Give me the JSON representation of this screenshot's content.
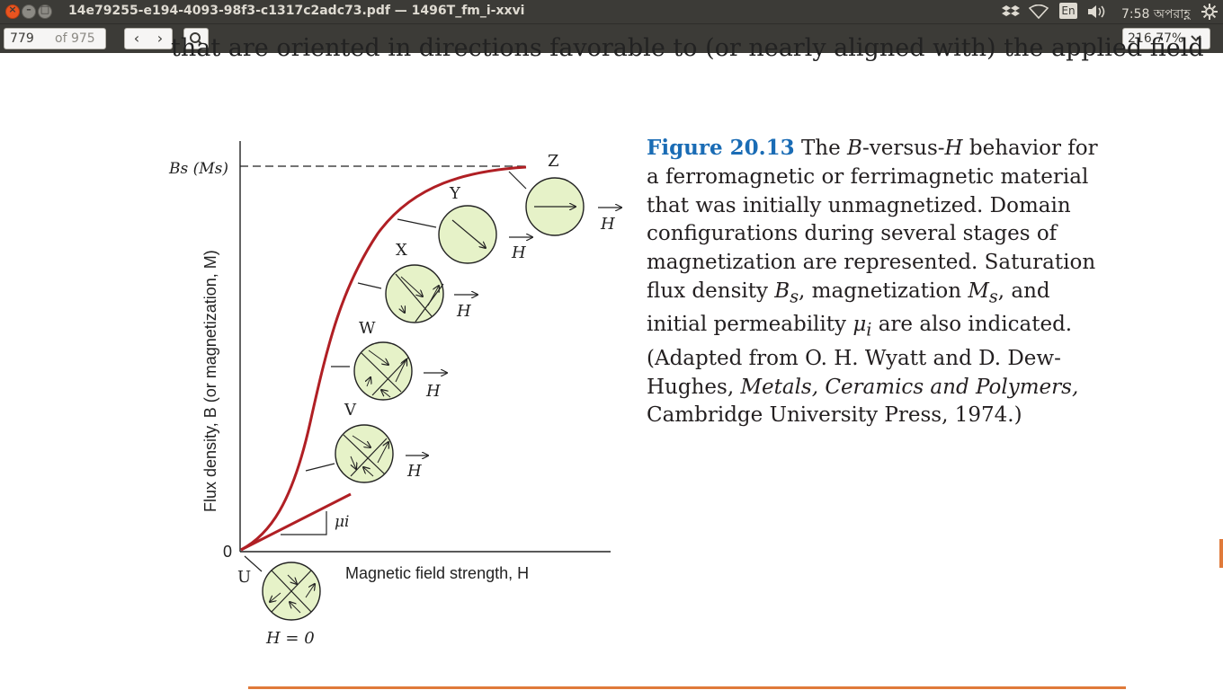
{
  "window": {
    "title": "14e79255-e194-4093-98f3-c1317c2adc73.pdf — 1496T_fm_i-xxvi",
    "close_symbol": "×",
    "min_symbol": "–",
    "max_symbol": "□"
  },
  "tray": {
    "keyboard_layout": "En",
    "clock": "7:58 অপরাহ্ণ",
    "icons": [
      "dropbox-icon",
      "wifi-icon",
      "keyboard-icon",
      "volume-icon",
      "gear-icon"
    ]
  },
  "toolbar": {
    "page_current": "779",
    "page_total": "of 975",
    "prev_symbol": "‹",
    "next_symbol": "›",
    "zoom": "216.77%"
  },
  "document": {
    "top_text_line": "that are oriented in directions favorable to (or nearly aligned with) the applied field",
    "caption": {
      "figure_label": "Figure 20.13",
      "part1": " The ",
      "B": "B",
      "part2": "-versus-",
      "H": "H",
      "part3": " behavior for a ferromagnetic or ferrimagnetic material that was initially unmagnetized. Domain configurations during several stages of magnetization are represented. Saturation flux density ",
      "Bs": "B",
      "s_sub": "s",
      "part4": ", magnetization ",
      "Ms": "M",
      "s_sub2": "s",
      "part5": ", and initial permeability ",
      "mu": "μ",
      "i_sub": "i",
      "part6": " are also indicated. (Adapted from O. H. Wyatt and D. Dew-Hughes, ",
      "book": "Metals, Ceramics and Polymers,",
      "part7": " Cambridge University Press, 1974.)"
    },
    "figure": {
      "y_axis_label": "Flux density, B (or magnetization, M)",
      "x_axis_label": "Magnetic field strength, H",
      "origin_label": "0",
      "saturation_label": "Bs (Ms)",
      "mu_label": "μi",
      "h_zero_label": "H = 0",
      "stages": [
        "U",
        "V",
        "W",
        "X",
        "Y",
        "Z"
      ],
      "field_symbol": "H",
      "curve_color": "#b01f24",
      "domain_fill": "#e6f2c8"
    }
  }
}
